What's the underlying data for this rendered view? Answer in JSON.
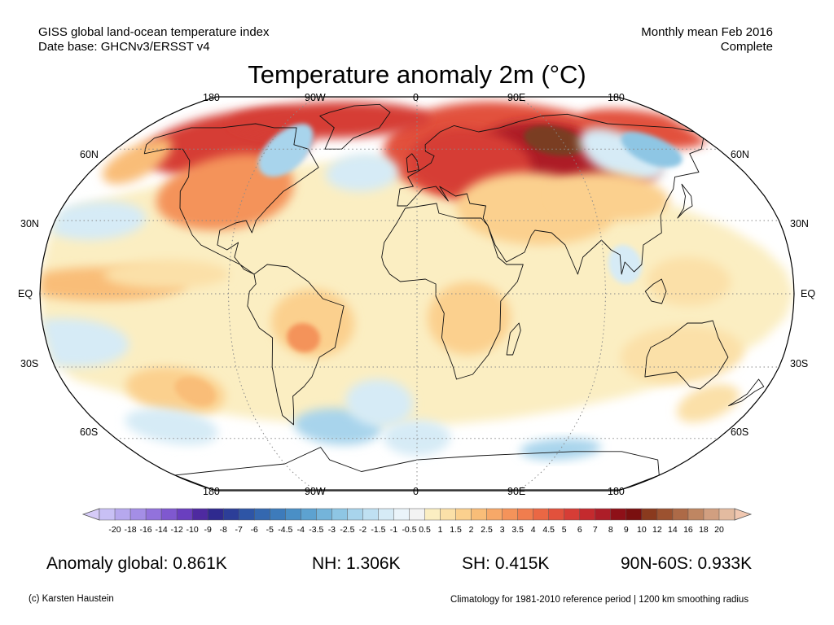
{
  "header": {
    "dataset": "GISS global land-ocean temperature index",
    "database": "Date base: GHCNv3/ERSST v4",
    "period": "Monthly mean Feb 2016",
    "status": "Complete"
  },
  "title": "Temperature anomaly 2m (°C)",
  "map": {
    "projection": "robinson",
    "top_lon_labels": [
      "180",
      "90W",
      "0",
      "90E",
      "180"
    ],
    "bottom_lon_labels": [
      "180",
      "90W",
      "0",
      "90E",
      "180"
    ],
    "left_lat_labels": [
      "60N",
      "30N",
      "EQ",
      "30S",
      "60S"
    ],
    "right_lat_labels": [
      "60N",
      "30N",
      "EQ",
      "30S",
      "60S"
    ],
    "land_color": "#f2f2f2",
    "missing_color": "#f2f2f2"
  },
  "colorbar": {
    "ticks": [
      "-20",
      "-18",
      "-16",
      "-14",
      "-12",
      "-10",
      "-9",
      "-8",
      "-7",
      "-6",
      "-5",
      "-4.5",
      "-4",
      "-3.5",
      "-3",
      "-2.5",
      "-2",
      "-1.5",
      "-1",
      "-0.5",
      "0.5",
      "1",
      "1.5",
      "2",
      "2.5",
      "3",
      "3.5",
      "4",
      "4.5",
      "5",
      "6",
      "7",
      "8",
      "9",
      "10",
      "12",
      "14",
      "16",
      "18",
      "20"
    ],
    "colors": [
      "#c8c0f5",
      "#b6a8ee",
      "#a48ee6",
      "#9272dc",
      "#7f58cf",
      "#6a3fbf",
      "#4e2aa0",
      "#2f2a8f",
      "#2c3e98",
      "#2e55a6",
      "#3468b0",
      "#3d7bbb",
      "#4a8fc6",
      "#5da2d0",
      "#74b4da",
      "#8ec6e4",
      "#a8d4ec",
      "#bfe0f2",
      "#d6ebf6",
      "#eaf4fa",
      "#f3f3f3",
      "#fbeec2",
      "#fbe0a8",
      "#fbd08e",
      "#f9bd78",
      "#f7a868",
      "#f4935a",
      "#f07d4e",
      "#ea6744",
      "#e2513c",
      "#d63d36",
      "#c42a2e",
      "#ad1d28",
      "#8e1018",
      "#7a0f0f",
      "#8a3a1e",
      "#9c5230",
      "#ad6a47",
      "#bf8662",
      "#d19f80",
      "#e3bba0"
    ]
  },
  "stats": {
    "global": "Anomaly global: 0.861K",
    "nh": "NH: 1.306K",
    "sh": "SH: 0.415K",
    "arctic": "90N-60S: 0.933K"
  },
  "footer": {
    "credit": "(c) Karsten Haustein",
    "note": "Climatology for 1981-2010 reference period | 1200 km smoothing radius"
  }
}
